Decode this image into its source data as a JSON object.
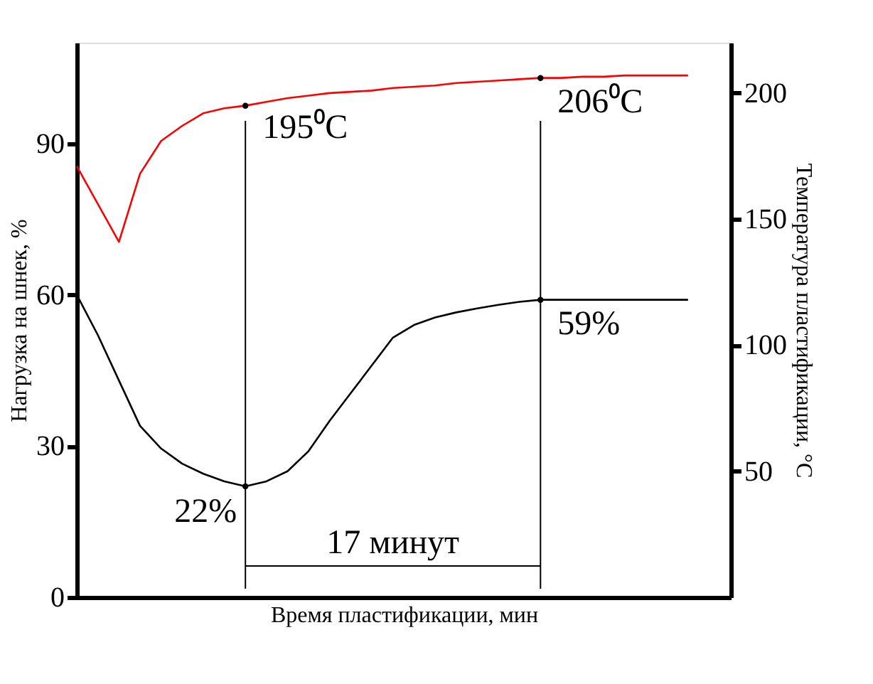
{
  "chart_data": {
    "type": "line",
    "xlabel": "Время пластификации, мин",
    "ylabel": "Нагрузка на шнек, %",
    "y2label": "Температура пластификации, °C",
    "categories": [
      null,
      null,
      null,
      null,
      null,
      null,
      null,
      null,
      null,
      null,
      null,
      null,
      null,
      null,
      null,
      null,
      null,
      null,
      null,
      null,
      null,
      null,
      null,
      null,
      null,
      null,
      null,
      null,
      null,
      null
    ],
    "ylim": [
      0,
      110
    ],
    "yticks": [
      0,
      30,
      60,
      90
    ],
    "y2lim": [
      0,
      220
    ],
    "y2ticks": [
      50,
      100,
      150,
      200
    ],
    "tick_labels": "y",
    "marker": "none",
    "line_style": "solid",
    "series": [
      {
        "color": "#000000",
        "values": [
          60,
          52,
          43,
          34,
          29.5,
          26.5,
          24.5,
          23,
          22,
          23,
          25,
          29,
          35,
          40.5,
          46,
          51.5,
          54,
          55.5,
          56.5,
          57.3,
          58,
          58.6,
          59,
          59,
          59,
          59,
          59,
          59,
          59,
          59
        ]
      },
      {
        "color": "#ff0000",
        "axis": "y2",
        "values": [
          171,
          156,
          141,
          168,
          181,
          187,
          192,
          194,
          195,
          196.5,
          198,
          199,
          200,
          200.5,
          201,
          202,
          202.5,
          203,
          204,
          204.5,
          205,
          205.5,
          206,
          206,
          206.5,
          206.5,
          207,
          207,
          207,
          207
        ]
      }
    ],
    "annotations": [
      "195⁰C",
      "206⁰C",
      "22%",
      "59%",
      "17 минут"
    ]
  }
}
